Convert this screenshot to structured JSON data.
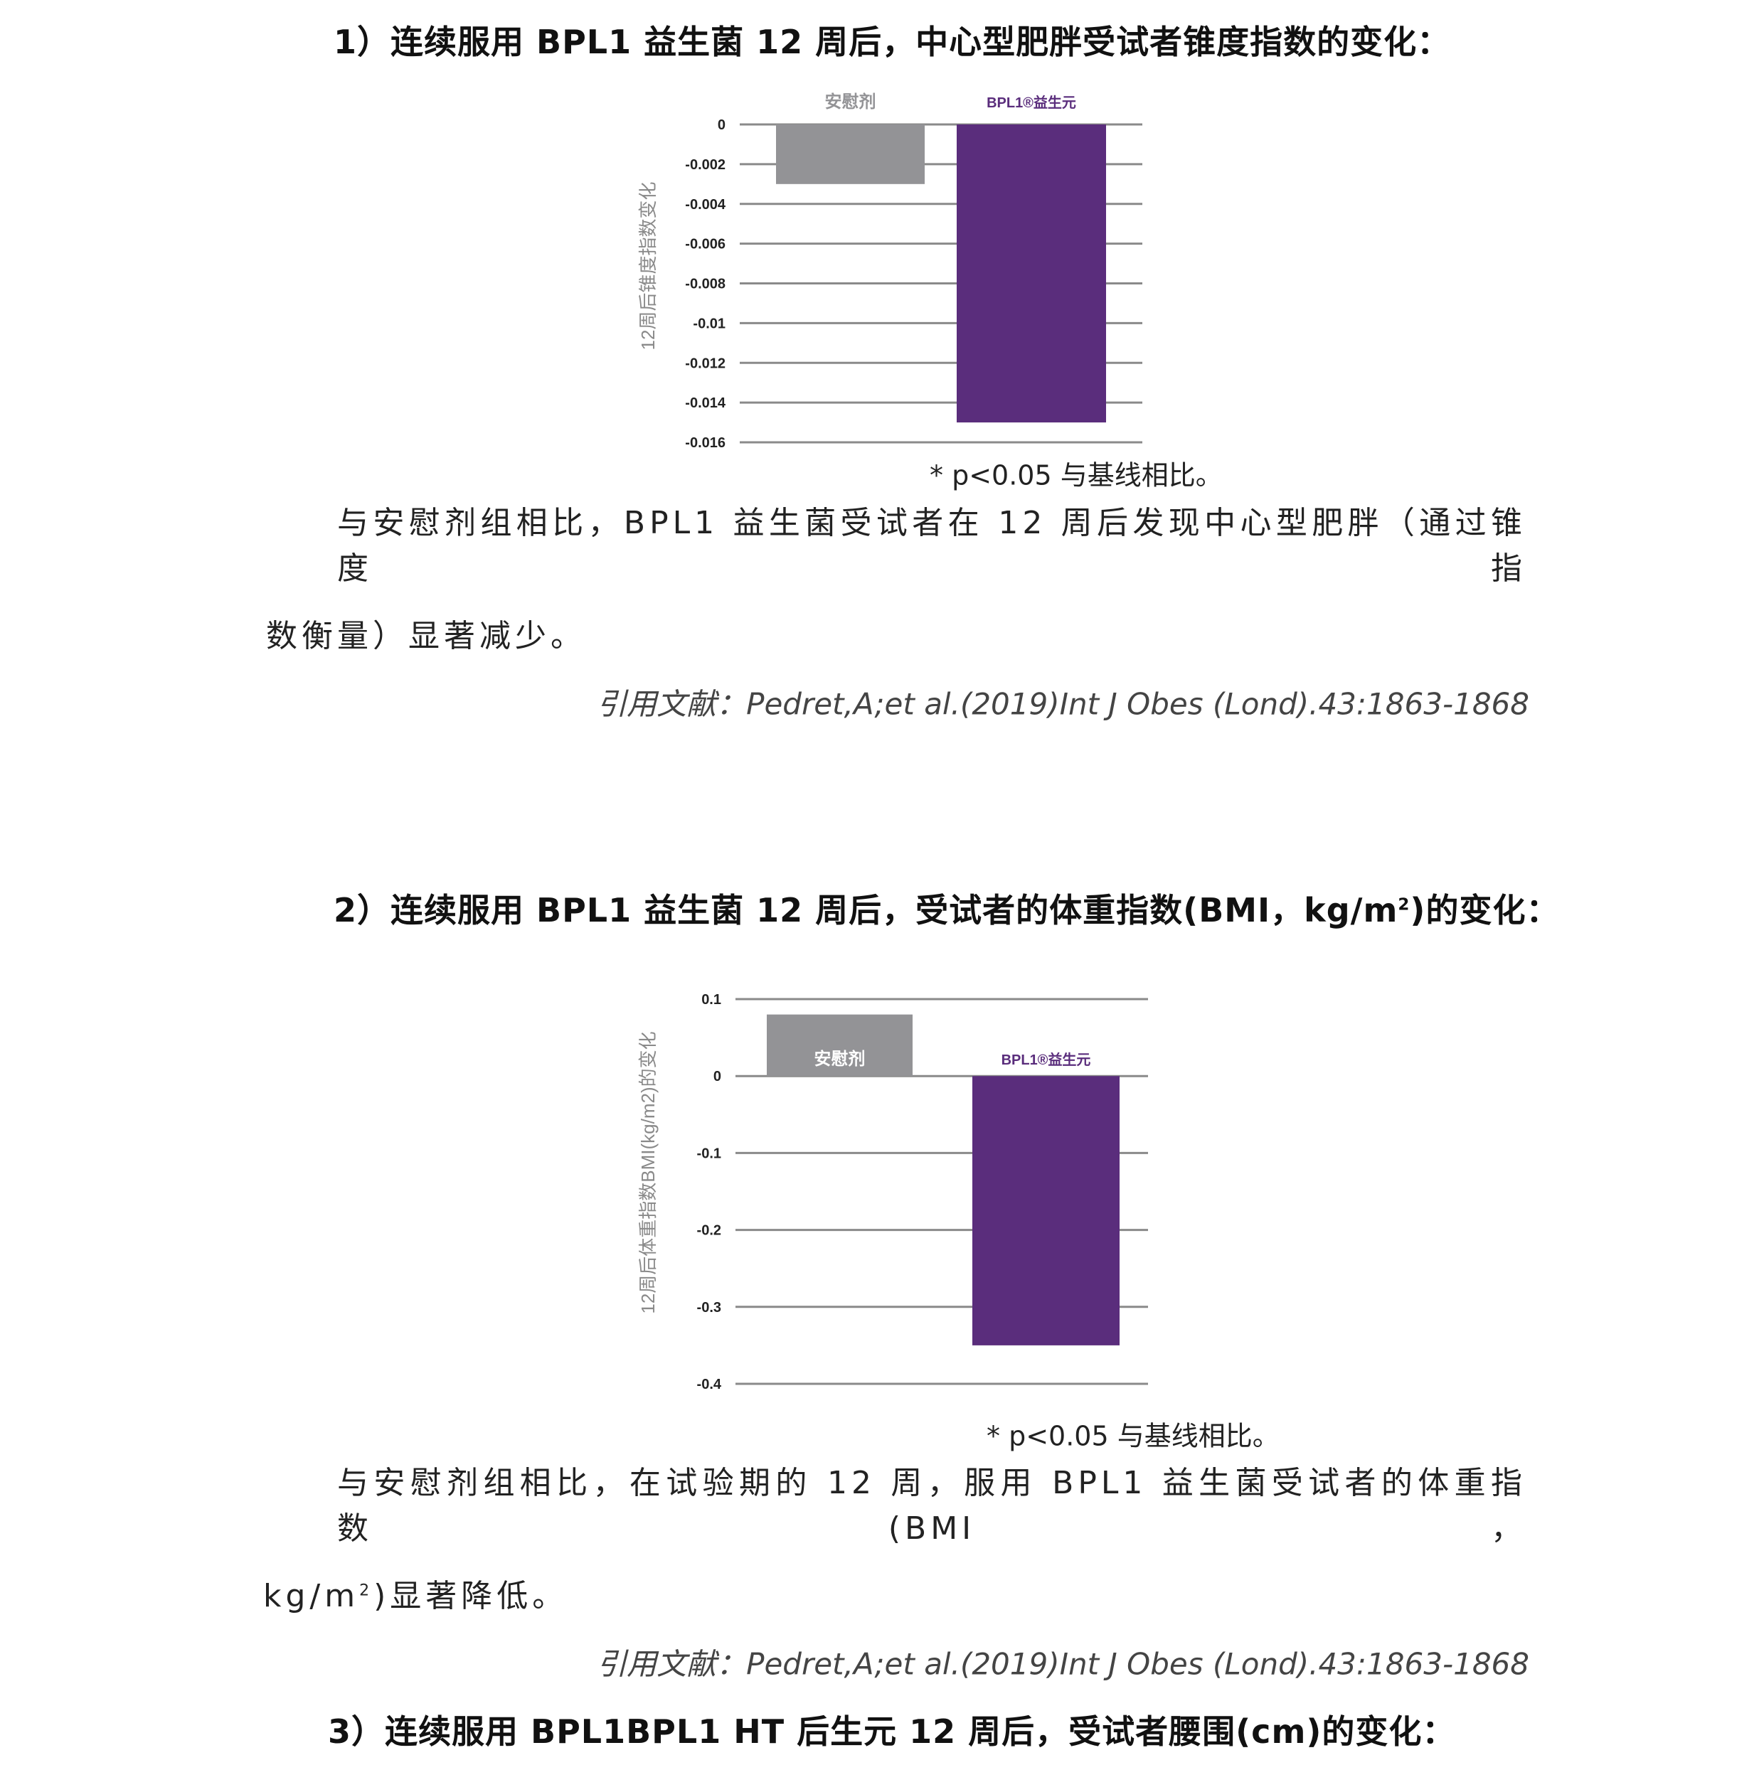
{
  "section1": {
    "title": "1）连续服用 BPL1 益生菌 12 周后，中心型肥胖受试者锥度指数的变化：",
    "footnote": "* p<0.05 与基线相比。",
    "paragraph_line1": "与安慰剂组相比，BPL1 益生菌受试者在 12 周后发现中心型肥胖（通过锥度指",
    "paragraph_line2": "数衡量）显著减少。",
    "citation": "引用文献：Pedret,A;et al.(2019)Int J Obes (Lond).43:1863-1868"
  },
  "section2": {
    "title_pre": "2）连续服用 BPL1 益生菌 12 周后，受试者的体重指数(BMI，kg/m",
    "title_sup": "2",
    "title_post": ")的变化：",
    "footnote": "* p<0.05 与基线相比。",
    "paragraph_line1": "与安慰剂组相比，在试验期的 12 周，服用 BPL1 益生菌受试者的体重指数(BMI，",
    "paragraph_line2_pre": "kg/m",
    "paragraph_line2_sup": "2",
    "paragraph_line2_post": ")显著降低。",
    "citation": "引用文献：Pedret,A;et al.(2019)Int J Obes (Lond).43:1863-1868"
  },
  "section3": {
    "title": "3）连续服用 BPL1BPL1 HT 后生元 12 周后，受试者腰围(cm)的变化："
  },
  "chart_data": [
    {
      "type": "bar",
      "categories": [
        "安慰剂",
        "BPL1®益生元"
      ],
      "values": [
        -0.003,
        -0.015
      ],
      "colors": [
        "#939396",
        "#5a2d7c"
      ],
      "label_colors": [
        "#939396",
        "#5a2d7c"
      ],
      "ylabel": "12周后锥度指数变化",
      "ylim": [
        -0.016,
        0
      ],
      "yticks": [
        0,
        -0.002,
        -0.004,
        -0.006,
        -0.008,
        -0.01,
        -0.012,
        -0.014,
        -0.016
      ],
      "ytick_labels": [
        "0",
        "-0.002",
        "-0.004",
        "-0.006",
        "-0.008",
        "-0.01",
        "-0.012",
        "-0.014",
        "-0.016"
      ],
      "grid": true,
      "category_labels_position": "top"
    },
    {
      "type": "bar",
      "categories": [
        "安慰剂",
        "BPL1®益生元"
      ],
      "values": [
        0.08,
        -0.35
      ],
      "colors": [
        "#939396",
        "#5a2d7c"
      ],
      "label_colors": [
        "#ffffff",
        "#5a2d7c"
      ],
      "ylabel": "12周后体重指数BMI(kg/m2)的变化",
      "ylim": [
        -0.4,
        0.1
      ],
      "yticks": [
        0.1,
        0,
        -0.1,
        -0.2,
        -0.3,
        -0.4
      ],
      "ytick_labels": [
        "0.1",
        "0",
        "-0.1",
        "-0.2",
        "-0.3",
        "-0.4"
      ],
      "grid": true,
      "category_labels_position": "near-zero"
    }
  ]
}
